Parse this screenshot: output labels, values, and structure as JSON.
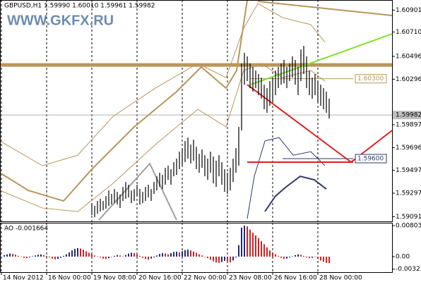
{
  "watermark": "WWW.GKFX.RU",
  "chart_data": [
    {
      "type": "ohlc",
      "title": "GBPUSD,H1  1.59990 1.60010 1.59961 1.59982",
      "xlim": [
        -1.5,
        137.25
      ],
      "xticks": [
        {
          "value": -1,
          "label": "14 Nov 2012"
        },
        {
          "value": 15,
          "label": "16 Nov 00:00"
        },
        {
          "value": 31,
          "label": "19 Nov 08:00"
        },
        {
          "value": 47,
          "label": "20 Nov 16:00"
        },
        {
          "value": 63,
          "label": "22 Nov 00:00"
        },
        {
          "value": 79,
          "label": "23 Nov 08:00"
        },
        {
          "value": 95,
          "label": "26 Nov 16:00"
        },
        {
          "value": 111,
          "label": "28 Nov 00:00"
        }
      ],
      "ylim": [
        1.5905,
        1.6099
      ],
      "yticks": [
        1.60901,
        {
          "value": 1.6071,
          "label": "1.60710"
        },
        1.60496,
        1.60296,
        1.59897,
        1.59696,
        1.59497,
        1.59297,
        1.59091
      ],
      "grid": "x",
      "bar_color": "#000000",
      "current_price": 1.59982,
      "highs": [
        null,
        null,
        null,
        null,
        null,
        null,
        null,
        null,
        null,
        null,
        null,
        null,
        null,
        null,
        null,
        null,
        null,
        null,
        null,
        null,
        null,
        null,
        null,
        null,
        null,
        null,
        null,
        null,
        null,
        null,
        null,
        1.5921,
        1.59186,
        1.59229,
        1.59248,
        1.59229,
        1.59272,
        1.59321,
        1.59291,
        1.59333,
        1.59309,
        1.59285,
        1.59352,
        1.59395,
        1.59371,
        1.59321,
        1.59333,
        1.59371,
        1.59333,
        1.59309,
        1.59352,
        1.59371,
        1.59333,
        1.59395,
        1.59445,
        1.59476,
        1.59457,
        1.59519,
        1.59538,
        1.59507,
        1.59569,
        1.596,
        1.59661,
        1.59692,
        1.59754,
        1.59785,
        1.59723,
        1.59766,
        1.59704,
        1.59642,
        1.5968,
        1.5963,
        1.596,
        1.59661,
        1.59618,
        1.59581,
        1.5963,
        1.59569,
        1.59507,
        1.59476,
        1.59519,
        1.596,
        1.59692,
        1.59878,
        1.60434,
        1.60527,
        1.60496,
        1.60434,
        1.60403,
        1.60372,
        1.60341,
        1.6031,
        1.60248,
        1.60218,
        1.60279,
        1.6031,
        1.60372,
        1.60403,
        1.60434,
        1.60465,
        1.60403,
        1.60434,
        1.60496,
        1.60465,
        1.60403,
        1.60557,
        1.60588,
        1.60496,
        1.60372,
        1.6031,
        1.60341,
        1.60279,
        1.60248,
        1.60218,
        1.60187,
        1.60125
      ],
      "lows": [
        null,
        null,
        null,
        null,
        null,
        null,
        null,
        null,
        null,
        null,
        null,
        null,
        null,
        null,
        null,
        null,
        null,
        null,
        null,
        null,
        null,
        null,
        null,
        null,
        null,
        null,
        null,
        null,
        null,
        null,
        null,
        1.59105,
        1.59086,
        1.59117,
        1.59136,
        1.59148,
        1.59161,
        1.59186,
        1.59198,
        1.5921,
        1.59198,
        1.59167,
        1.59229,
        1.59248,
        1.5926,
        1.5921,
        1.59229,
        1.59272,
        1.59198,
        1.5921,
        1.59229,
        1.5926,
        1.59229,
        1.59291,
        1.59321,
        1.59352,
        1.59333,
        1.59371,
        1.59414,
        1.59371,
        1.59445,
        1.59457,
        1.59507,
        1.59538,
        1.59569,
        1.596,
        1.59557,
        1.59581,
        1.59507,
        1.59476,
        1.59519,
        1.59445,
        1.59414,
        1.59476,
        1.59383,
        1.59352,
        1.59445,
        1.59371,
        1.59309,
        1.59291,
        1.59321,
        1.59395,
        1.59476,
        1.59538,
        1.59847,
        1.60248,
        1.60279,
        1.60218,
        1.60187,
        1.60218,
        1.60156,
        1.60125,
        1.60032,
        1.60001,
        1.60063,
        1.60094,
        1.60156,
        1.60218,
        1.60248,
        1.6026,
        1.60218,
        1.60279,
        1.6031,
        1.60248,
        1.60156,
        1.60279,
        1.60341,
        1.60218,
        1.60156,
        1.60125,
        1.60156,
        1.60094,
        1.60063,
        1.60032,
        1.60001,
        1.59951
      ],
      "indicators": [
        {
          "color": "#b8955a",
          "width": 1,
          "x": [
            -1.5,
            13.5,
            26,
            38.5,
            53.5,
            68.5,
            78.5,
            84.75,
            89.75,
            98.5,
            108.5,
            113.5
          ],
          "values": [
            1.59754,
            1.59538,
            1.5963,
            1.5997,
            1.60218,
            1.60434,
            1.6031,
            1.60743,
            1.60959,
            1.60836,
            1.60774,
            1.60619
          ]
        },
        {
          "color": "#b8955a",
          "width": 2,
          "x": [
            -1.5,
            8.5,
            21,
            31,
            46,
            61,
            69.75,
            78.5,
            82.25,
            86
          ],
          "values": [
            1.59476,
            1.59321,
            1.59229,
            1.59507,
            1.59878,
            1.60187,
            1.60403,
            1.60218,
            1.60372,
            1.6099
          ]
        },
        {
          "color": "#b8955a",
          "width": 1,
          "x": [
            -1.5,
            13.5,
            26,
            38.5,
            53.5,
            68.5,
            78.5,
            84.75,
            91,
            98.5,
            108.5,
            113.5
          ],
          "values": [
            1.59321,
            1.59167,
            1.59136,
            1.59383,
            1.59723,
            1.60032,
            1.59878,
            1.60372,
            1.60434,
            1.6031,
            1.60372,
            1.60279
          ]
        },
        {
          "color": "#2d3a6e",
          "width": 1,
          "x": [
            86,
            88.5,
            92.25,
            97.25,
            102.25,
            108.5,
            113.5
          ],
          "values": [
            1.59074,
            1.59445,
            1.59754,
            1.59785,
            1.5963,
            1.59661,
            1.59538
          ]
        },
        {
          "color": "#2d3a6e",
          "width": 2,
          "x": [
            92.25,
            96,
            99.75,
            104.75,
            109.75,
            114
          ],
          "values": [
            1.59136,
            1.59272,
            1.59352,
            1.59445,
            1.59414,
            1.59333
          ]
        }
      ],
      "lines": [
        {
          "color": "#b8955a",
          "width": 5,
          "x": [
            -1.5,
            137.25
          ],
          "values": [
            1.60421,
            1.60421
          ]
        },
        {
          "color": "#b8955a",
          "width": 1,
          "x": [
            87.25,
            123.5
          ],
          "values": [
            1.603,
            1.603
          ],
          "label": "1.60300"
        },
        {
          "color": "#2d3a6e",
          "width": 1,
          "x": [
            98.5,
            123.5
          ],
          "values": [
            1.596,
            1.596
          ],
          "label": "1.59600"
        },
        {
          "color": "#e02020",
          "width": 2,
          "x": [
            86,
            123.5
          ],
          "values": [
            1.59569,
            1.59569
          ]
        },
        {
          "color": "#e02020",
          "width": 2,
          "x": [
            86,
            122.75,
            137.25
          ],
          "values": [
            1.60248,
            1.59569,
            1.59847
          ]
        },
        {
          "color": "#80e030",
          "width": 2,
          "x": [
            87.25,
            137.25
          ],
          "values": [
            1.60248,
            1.60693
          ]
        },
        {
          "color": "#a0a0a0",
          "width": 2,
          "x": [
            33.5,
            51.5,
            61
          ],
          "values": [
            1.59062,
            1.59556,
            1.59062
          ]
        },
        {
          "color": "#b8955a",
          "width": 2,
          "x": [
            89.75,
            137.25
          ],
          "values": [
            1.60978,
            1.60854
          ]
        }
      ]
    },
    {
      "type": "histogram",
      "title": "AO -0.001664",
      "ylim": [
        -0.00401,
        0.00876
      ],
      "yticks": [
        0.00803,
        {
          "value": 0,
          "label": "0.00"
        },
        -0.00323
      ],
      "up_color": "#1f2a80",
      "down_color": "#d82020",
      "values": [
        0.0004,
        0.0006,
        0.0008,
        0.0007,
        0.0005,
        0.0002,
        -0.0001,
        -0.0003,
        -0.0004,
        -0.0002,
        0.0001,
        0.0003,
        0.0005,
        0.0006,
        0.0004,
        0.0002,
        -0.0002,
        -0.0005,
        -0.0007,
        -0.0006,
        -0.0003,
        0.0002,
        0.0006,
        0.0011,
        0.0016,
        0.002,
        0.0022,
        0.0021,
        0.0018,
        0.0014,
        0.001,
        0.0006,
        0.0003,
        0.0001,
        -0.0002,
        -0.0005,
        -0.0006,
        -0.0004,
        -0.0001,
        0.0002,
        0.0004,
        0.0003,
        0.0001,
        0.0004,
        0.0008,
        0.001,
        0.0009,
        0.0006,
        0.0002,
        -0.0003,
        -0.0006,
        -0.0008,
        -0.0005,
        -0.0002,
        0.0003,
        0.0007,
        0.0009,
        0.0008,
        0.0006,
        0.0009,
        0.0012,
        0.0013,
        0.0011,
        0.0014,
        0.0017,
        0.0018,
        0.0016,
        0.0013,
        0.001,
        0.0006,
        0.0003,
        -0.0001,
        -0.0004,
        -0.0008,
        -0.0012,
        -0.0015,
        -0.0016,
        -0.0014,
        -0.0011,
        -0.0013,
        -0.0015,
        -0.001,
        -0.0002,
        0.003,
        0.0075,
        0.008,
        0.0078,
        0.007,
        0.0062,
        0.0055,
        0.0048,
        0.004,
        0.0032,
        0.0024,
        0.0016,
        0.001,
        0.0006,
        0.0002,
        -0.0003,
        -0.0006,
        -0.0005,
        -0.0002,
        0.0001,
        0.0004,
        0.0006,
        0.0005,
        0.0002,
        -0.0002,
        -0.0004,
        -0.0003,
        -0.0001,
        -0.0006,
        -0.001,
        -0.0013,
        -0.0016,
        -0.001664
      ]
    }
  ]
}
